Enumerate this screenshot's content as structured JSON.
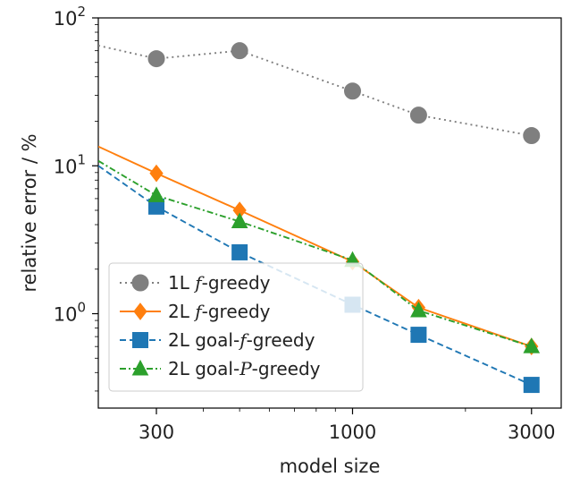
{
  "chart_data": {
    "type": "line",
    "xscale": "log",
    "yscale": "log",
    "xlim": [
      210,
      3600
    ],
    "ylim": [
      0.23,
      100
    ],
    "xticks": [
      300,
      1000,
      3000
    ],
    "xtick_labels": [
      "300",
      "1000",
      "3000"
    ],
    "yticks": [
      1,
      10,
      100
    ],
    "ytick_labels": [
      {
        "base": "10",
        "exp": "0"
      },
      {
        "base": "10",
        "exp": "1"
      },
      {
        "base": "10",
        "exp": "2"
      }
    ],
    "xlabel": "model size",
    "ylabel": "relative error / %",
    "grid": false,
    "legend_position": "lower-left",
    "series": [
      {
        "name": "1L f-greedy",
        "label_pre": "1L ",
        "label_math": "f",
        "label_post": "-greedy",
        "color": "#7f7f7f",
        "marker": "circle",
        "linestyle": "dotted",
        "x": [
          210,
          300,
          500,
          1000,
          1500,
          3000
        ],
        "y": [
          65,
          53,
          60,
          32,
          22,
          16
        ]
      },
      {
        "name": "2L f-greedy",
        "label_pre": "2L ",
        "label_math": "f",
        "label_post": "-greedy",
        "color": "#ff7f0e",
        "marker": "diamond",
        "linestyle": "solid",
        "x": [
          210,
          300,
          500,
          1000,
          1500,
          3000
        ],
        "y": [
          13.5,
          8.9,
          5.0,
          2.25,
          1.1,
          0.6
        ]
      },
      {
        "name": "2L goal-f-greedy",
        "label_pre": "2L goal-",
        "label_math": "f",
        "label_post": "-greedy",
        "color": "#1f77b4",
        "marker": "square",
        "linestyle": "dashed",
        "x": [
          210,
          300,
          500,
          1000,
          1500,
          3000
        ],
        "y": [
          10.0,
          5.3,
          2.6,
          1.15,
          0.72,
          0.33
        ]
      },
      {
        "name": "2L goal-P-greedy",
        "label_pre": "2L goal-",
        "label_math": "P",
        "label_post": "-greedy",
        "color": "#2ca02c",
        "marker": "triangle",
        "linestyle": "dashdot",
        "x": [
          210,
          300,
          500,
          1000,
          1500,
          3000
        ],
        "y": [
          10.8,
          6.3,
          4.2,
          2.3,
          1.05,
          0.6
        ]
      }
    ]
  }
}
